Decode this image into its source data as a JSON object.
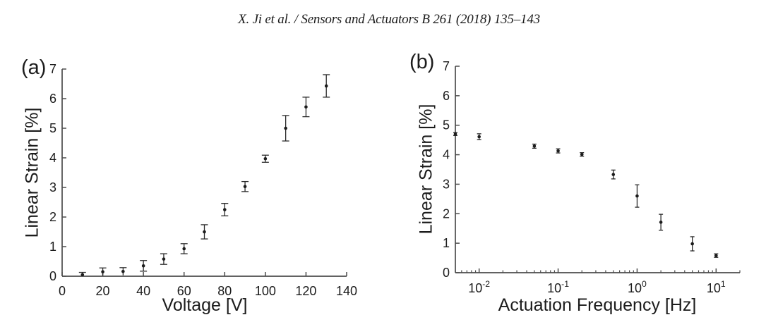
{
  "header": {
    "text": "X. Ji et al. / Sensors and Actuators B 261 (2018) 135–143"
  },
  "colors": {
    "background": "#ffffff",
    "axis": "#4c4c4c",
    "marker": "#1c1c1c",
    "error_bar": "#2a2a2a",
    "text": "#1c1c1c"
  },
  "chart_data": [
    {
      "id": "a",
      "type": "scatter",
      "panel_label": "(a)",
      "xlabel": "Voltage [V]",
      "ylabel": "Linear Strain [%]",
      "xscale": "linear",
      "xlim": [
        0,
        140
      ],
      "ylim": [
        0,
        7
      ],
      "xticks": [
        0,
        20,
        40,
        60,
        80,
        100,
        120,
        140
      ],
      "yticks": [
        0,
        1,
        2,
        3,
        4,
        5,
        6,
        7
      ],
      "grid": false,
      "legend": null,
      "series": [
        {
          "name": "linear-strain-vs-voltage",
          "x": [
            10,
            20,
            30,
            40,
            50,
            60,
            70,
            80,
            90,
            100,
            110,
            120,
            130
          ],
          "y": [
            0.05,
            0.15,
            0.16,
            0.35,
            0.58,
            0.93,
            1.5,
            2.25,
            3.03,
            3.97,
            5.0,
            5.72,
            6.43
          ],
          "yerr": [
            0.08,
            0.13,
            0.13,
            0.18,
            0.18,
            0.17,
            0.24,
            0.21,
            0.17,
            0.12,
            0.43,
            0.33,
            0.38
          ]
        }
      ]
    },
    {
      "id": "b",
      "type": "scatter",
      "panel_label": "(b)",
      "xlabel": "Actuation Frequency [Hz]",
      "ylabel": "Linear Strain [%]",
      "xscale": "log",
      "xlim": [
        0.005,
        20
      ],
      "ylim": [
        0,
        7
      ],
      "xticks": [
        {
          "base": "10",
          "exp": "-2",
          "value": 0.01
        },
        {
          "base": "10",
          "exp": "-1",
          "value": 0.1
        },
        {
          "base": "10",
          "exp": "0",
          "value": 1
        },
        {
          "base": "10",
          "exp": "1",
          "value": 10
        }
      ],
      "yticks": [
        0,
        1,
        2,
        3,
        4,
        5,
        6,
        7
      ],
      "grid": false,
      "legend": null,
      "series": [
        {
          "name": "linear-strain-vs-frequency",
          "x": [
            0.005,
            0.01,
            0.05,
            0.1,
            0.2,
            0.5,
            1,
            2,
            5,
            10
          ],
          "y": [
            4.7,
            4.61,
            4.29,
            4.13,
            4.01,
            3.33,
            2.6,
            1.71,
            0.98,
            0.58
          ],
          "yerr": [
            0.05,
            0.1,
            0.07,
            0.07,
            0.06,
            0.15,
            0.38,
            0.27,
            0.24,
            0.06
          ]
        }
      ]
    }
  ]
}
